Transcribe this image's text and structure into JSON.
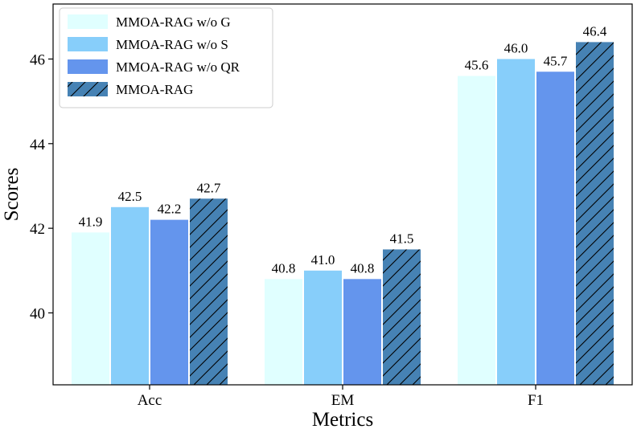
{
  "chart_data": {
    "type": "bar",
    "categories": [
      "Acc",
      "EM",
      "F1"
    ],
    "series": [
      {
        "name": "MMOA-RAG w/o G",
        "values": [
          41.9,
          40.8,
          45.6
        ],
        "color": "#e0ffff",
        "hatch": false
      },
      {
        "name": "MMOA-RAG w/o S",
        "values": [
          42.5,
          41.0,
          46.0
        ],
        "color": "#87cefa",
        "hatch": false
      },
      {
        "name": "MMOA-RAG w/o QR",
        "values": [
          42.2,
          40.8,
          45.7
        ],
        "color": "#6495ed",
        "hatch": false
      },
      {
        "name": "MMOA-RAG",
        "values": [
          42.7,
          41.5,
          46.4
        ],
        "color": "#4682b4",
        "hatch": true
      }
    ],
    "value_labels": [
      [
        "41.9",
        "40.8",
        "45.6"
      ],
      [
        "42.5",
        "41.0",
        "46.0"
      ],
      [
        "42.2",
        "40.8",
        "45.7"
      ],
      [
        "42.7",
        "41.5",
        "46.4"
      ]
    ],
    "xlabel": "Metrics",
    "ylabel": "Scores",
    "ylim": [
      38.3,
      47.3
    ],
    "yticks": [
      40,
      42,
      44,
      46
    ],
    "ytick_labels": [
      "40",
      "42",
      "44",
      "46"
    ],
    "grid": false,
    "legend_position": "top-left"
  }
}
